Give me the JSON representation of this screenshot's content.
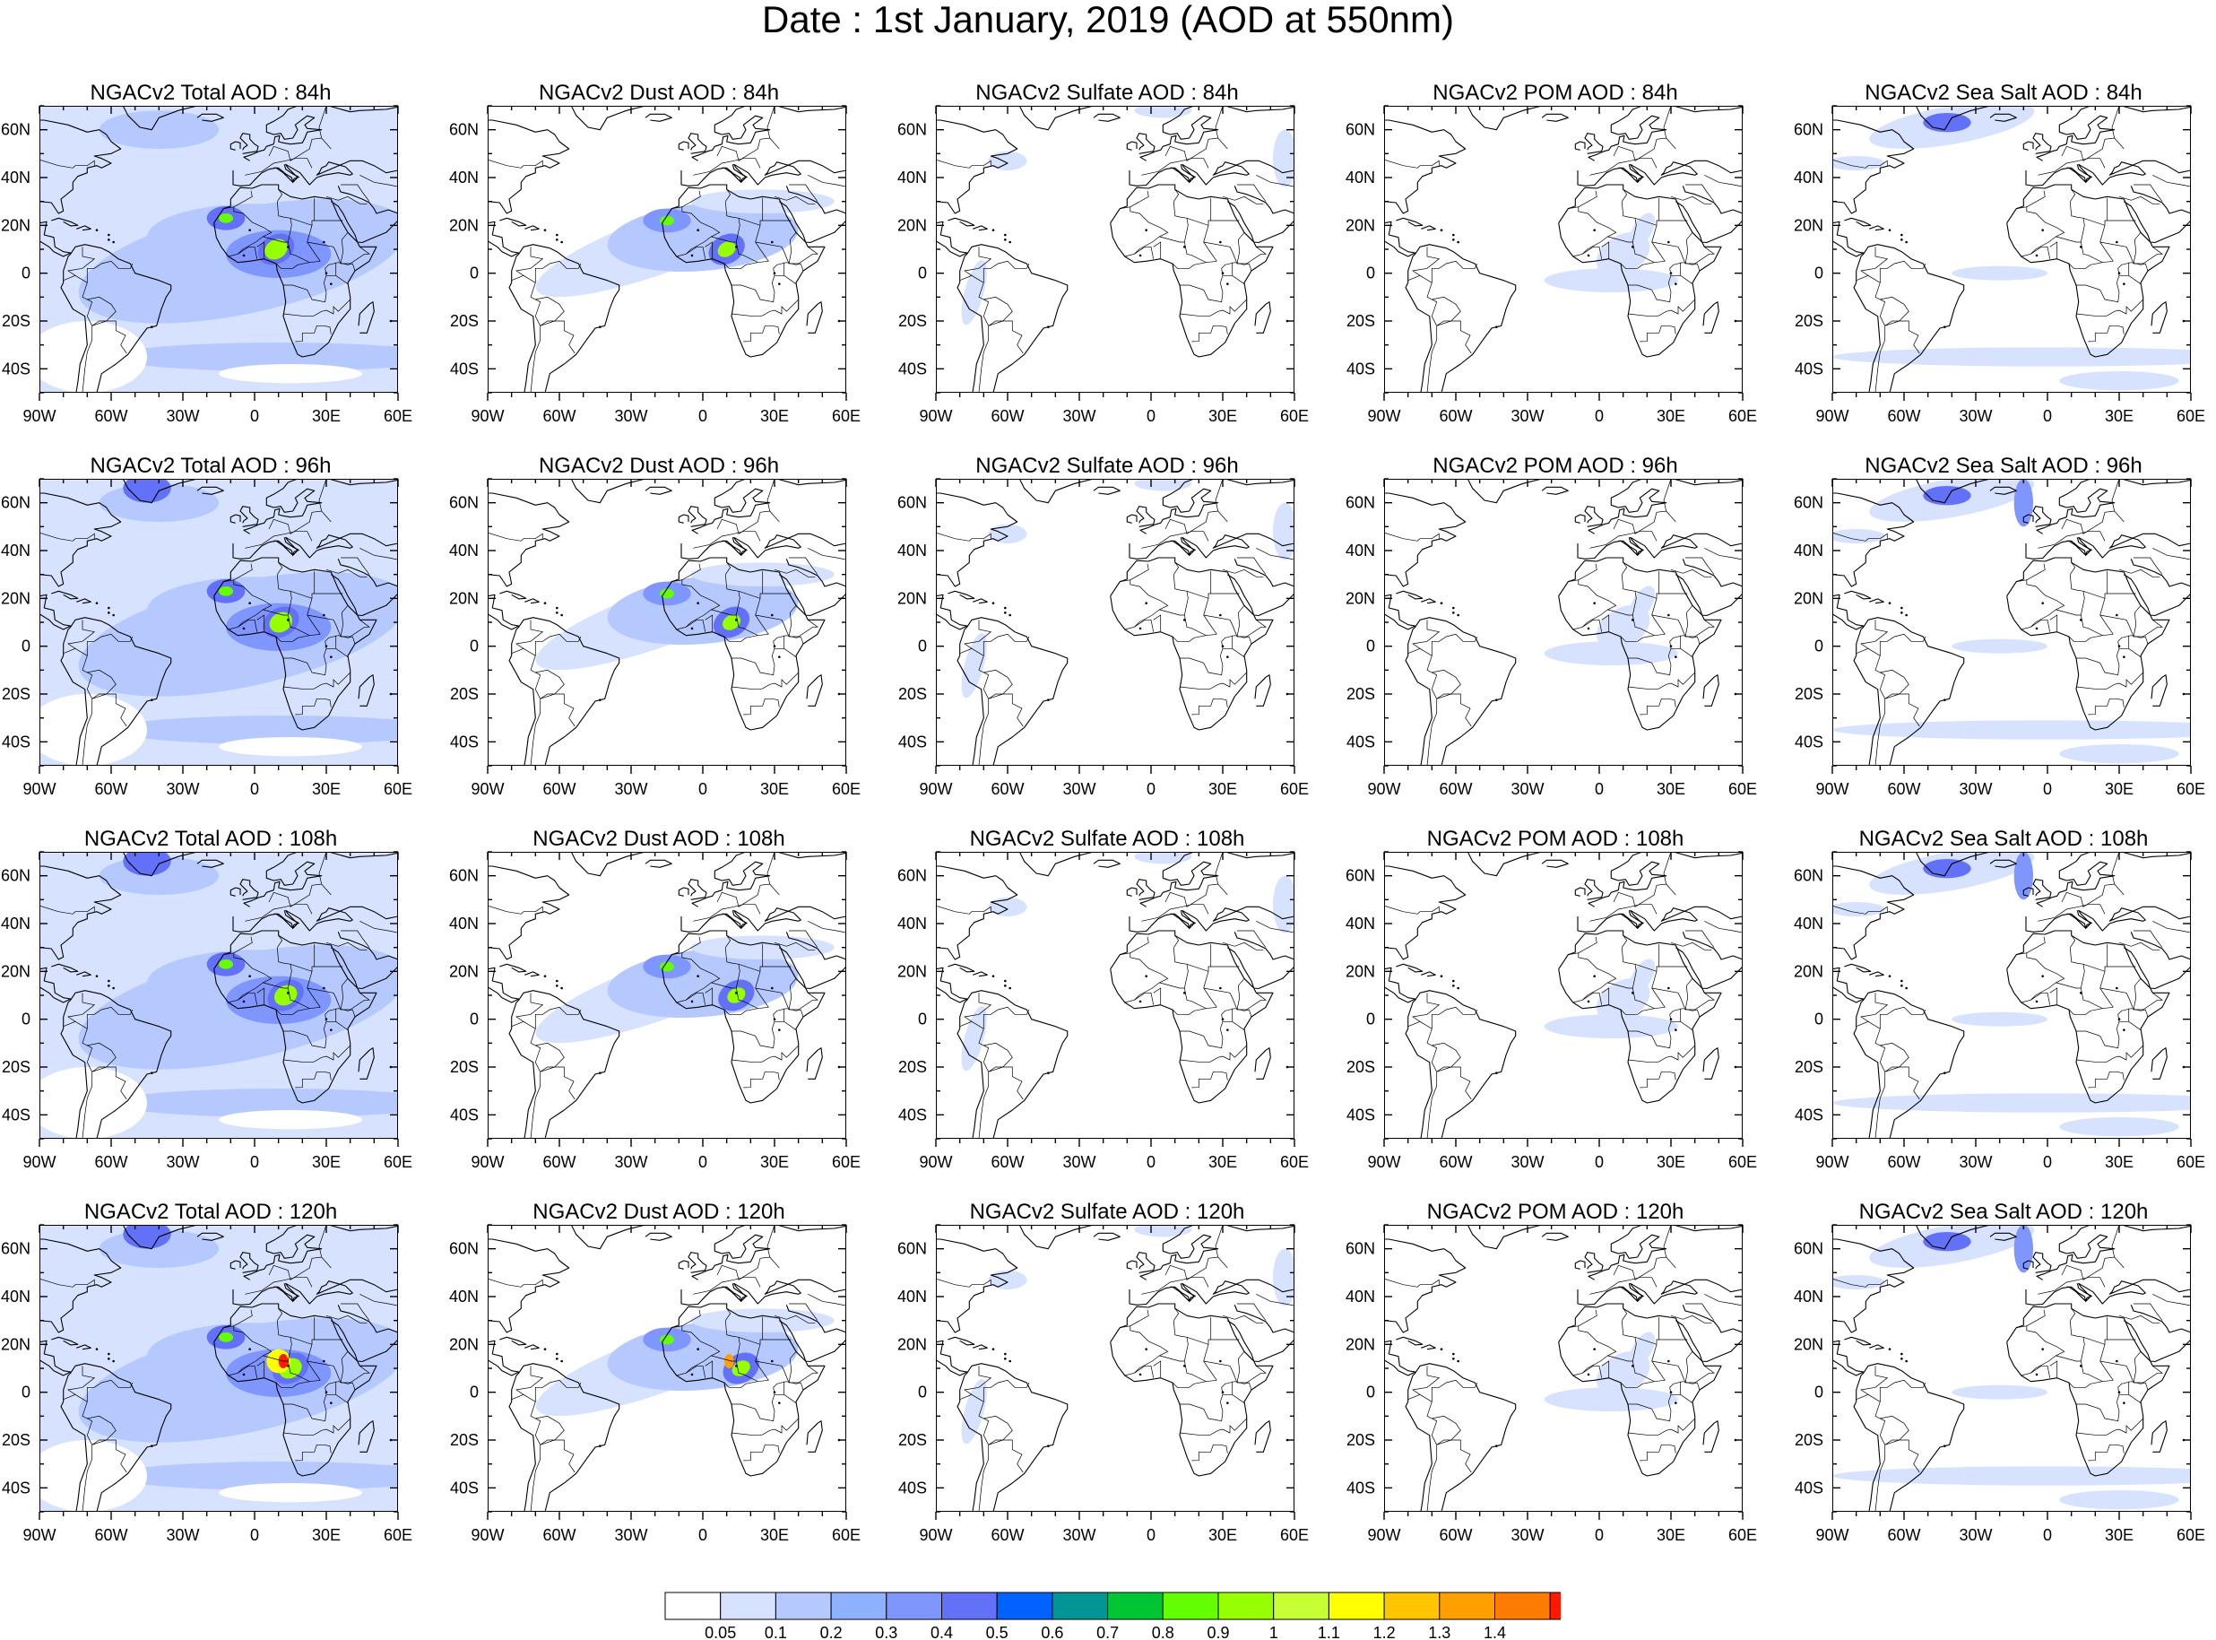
{
  "title": "Date : 1st January, 2019 (AOD at 550nm)",
  "lon_ticks": [
    "90W",
    "60W",
    "30W",
    "0",
    "30E",
    "60E"
  ],
  "lat_ticks": [
    "60N",
    "40N",
    "20N",
    "0",
    "20S",
    "40S"
  ],
  "lon_range": [
    -90,
    60
  ],
  "lat_range": [
    -50,
    70
  ],
  "colorbar": {
    "colors": [
      "#ffffff",
      "#d6e2ff",
      "#b5c9ff",
      "#8eb2ff",
      "#7f96ff",
      "#6370f8",
      "#0063ff",
      "#009696",
      "#00c633",
      "#63ff00",
      "#96ff00",
      "#c6ff33",
      "#ffff00",
      "#ffc600",
      "#ffa000",
      "#ff7c00",
      "#ff1900"
    ],
    "labels": [
      "0.05",
      "0.1",
      "0.2",
      "0.3",
      "0.4",
      "0.5",
      "0.6",
      "0.7",
      "0.8",
      "0.9",
      "1",
      "1.1",
      "1.2",
      "1.3",
      "1.4"
    ]
  },
  "panels": [
    {
      "title": "NGACv2 Total AOD : 84h",
      "species": "total"
    },
    {
      "title": "NGACv2 Dust AOD : 84h",
      "species": "dust"
    },
    {
      "title": "NGACv2 Sulfate AOD : 84h",
      "species": "sulfate"
    },
    {
      "title": "NGACv2 POM AOD : 84h",
      "species": "pom"
    },
    {
      "title": "NGACv2 Sea Salt AOD : 84h",
      "species": "seasalt"
    },
    {
      "title": "NGACv2 Total AOD : 96h",
      "species": "total"
    },
    {
      "title": "NGACv2 Dust AOD : 96h",
      "species": "dust"
    },
    {
      "title": "NGACv2 Sulfate AOD : 96h",
      "species": "sulfate"
    },
    {
      "title": "NGACv2 POM AOD : 96h",
      "species": "pom"
    },
    {
      "title": "NGACv2 Sea Salt AOD : 96h",
      "species": "seasalt"
    },
    {
      "title": "NGACv2 Total AOD : 108h",
      "species": "total"
    },
    {
      "title": "NGACv2 Dust AOD : 108h",
      "species": "dust"
    },
    {
      "title": "NGACv2 Sulfate AOD : 108h",
      "species": "sulfate"
    },
    {
      "title": "NGACv2 POM AOD : 108h",
      "species": "pom"
    },
    {
      "title": "NGACv2 Sea Salt AOD : 108h",
      "species": "seasalt"
    },
    {
      "title": "NGACv2 Total AOD : 120h",
      "species": "total"
    },
    {
      "title": "NGACv2 Dust AOD : 120h",
      "species": "dust"
    },
    {
      "title": "NGACv2 Sulfate AOD : 120h",
      "species": "sulfate"
    },
    {
      "title": "NGACv2 POM AOD : 120h",
      "species": "pom"
    },
    {
      "title": "NGACv2 Sea Salt  AOD : 120h",
      "species": "seasalt"
    }
  ]
}
